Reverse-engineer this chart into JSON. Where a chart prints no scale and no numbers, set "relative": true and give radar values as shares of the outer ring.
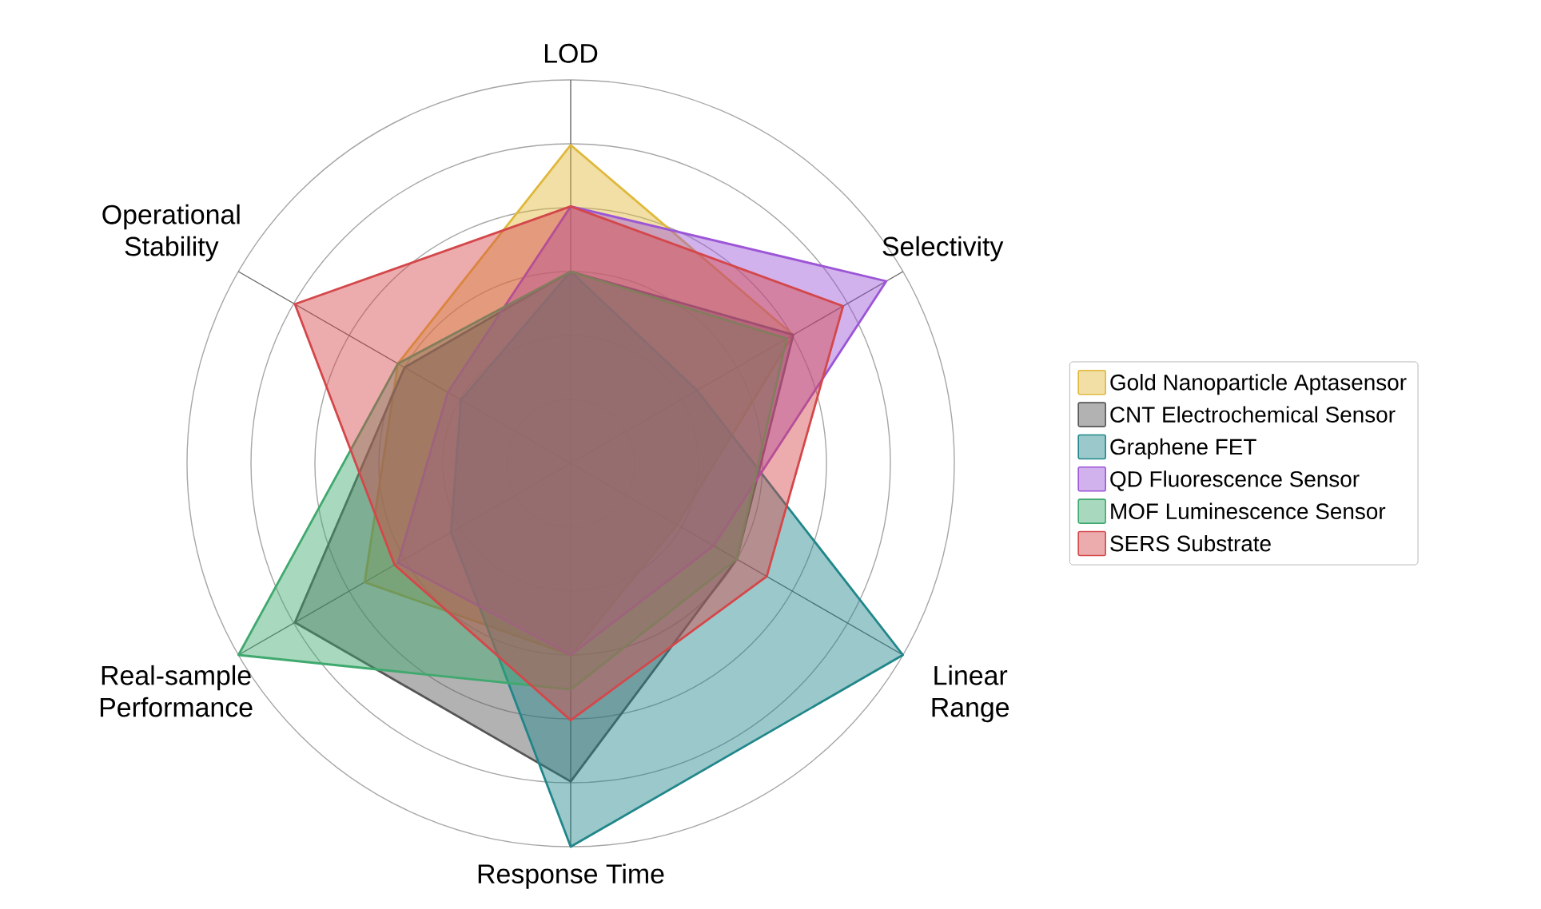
{
  "chart_data": {
    "type": "radar",
    "relative": true,
    "grid": true,
    "legend": "right",
    "categories": [
      "LOD",
      "Selectivity",
      "Linear Range",
      "Response Time",
      "Real-sample Performance",
      "Operational Stability"
    ],
    "series": [
      {
        "name": "Gold Nanoparticle Aptasensor",
        "color": "#e0b83a",
        "values": [
          0.83,
          0.67,
          0.32,
          0.5,
          0.62,
          0.52
        ]
      },
      {
        "name": "CNT Electrochemical Sensor",
        "color": "#555555",
        "values": [
          0.5,
          0.67,
          0.5,
          0.83,
          0.83,
          0.5
        ]
      },
      {
        "name": "Graphene FET",
        "color": "#21868a",
        "values": [
          0.5,
          0.38,
          1.0,
          1.0,
          0.36,
          0.33
        ]
      },
      {
        "name": "QD Fluorescence Sensor",
        "color": "#9b55d6",
        "values": [
          0.67,
          0.95,
          0.43,
          0.5,
          0.52,
          0.37
        ]
      },
      {
        "name": "MOF Luminescence Sensor",
        "color": "#3fa96e",
        "values": [
          0.5,
          0.65,
          0.5,
          0.59,
          1.0,
          0.52
        ]
      },
      {
        "name": "SERS Substrate",
        "color": "#d4474a",
        "values": [
          0.67,
          0.82,
          0.59,
          0.67,
          0.53,
          0.83
        ]
      }
    ]
  }
}
